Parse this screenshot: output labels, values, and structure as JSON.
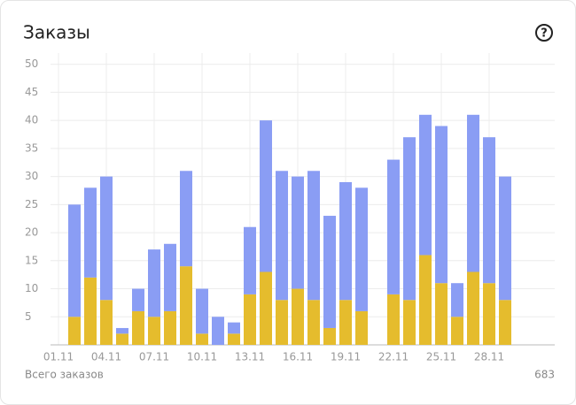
{
  "chart_data": {
    "type": "stacked-bar",
    "title": "Заказы",
    "categories": [
      "01.11",
      null,
      null,
      "04.11",
      null,
      null,
      "07.11",
      null,
      null,
      "10.11",
      null,
      null,
      "13.11",
      null,
      null,
      "16.11",
      null,
      null,
      "19.11",
      null,
      null,
      "22.11",
      null,
      null,
      "25.11",
      null,
      null,
      "28.11",
      null
    ],
    "series": [
      {
        "color": "#e5bc2d",
        "values": [
          0,
          5,
          12,
          8,
          2,
          6,
          5,
          6,
          14,
          2,
          0,
          2,
          9,
          13,
          8,
          10,
          8,
          3,
          8,
          6,
          0,
          9,
          8,
          16,
          11,
          5,
          13,
          11,
          8
        ]
      },
      {
        "color": "#8a9df4",
        "values": [
          0,
          20,
          16,
          22,
          1,
          4,
          12,
          12,
          17,
          8,
          5,
          2,
          12,
          27,
          23,
          20,
          23,
          20,
          21,
          22,
          0,
          24,
          29,
          25,
          28,
          6,
          28,
          26,
          22
        ]
      }
    ],
    "ylim": [
      0,
      52
    ],
    "yticks": [
      5,
      10,
      15,
      20,
      25,
      30,
      35,
      40,
      45,
      50
    ],
    "grid": true,
    "total_label": "Всего заказов",
    "total": 683
  }
}
